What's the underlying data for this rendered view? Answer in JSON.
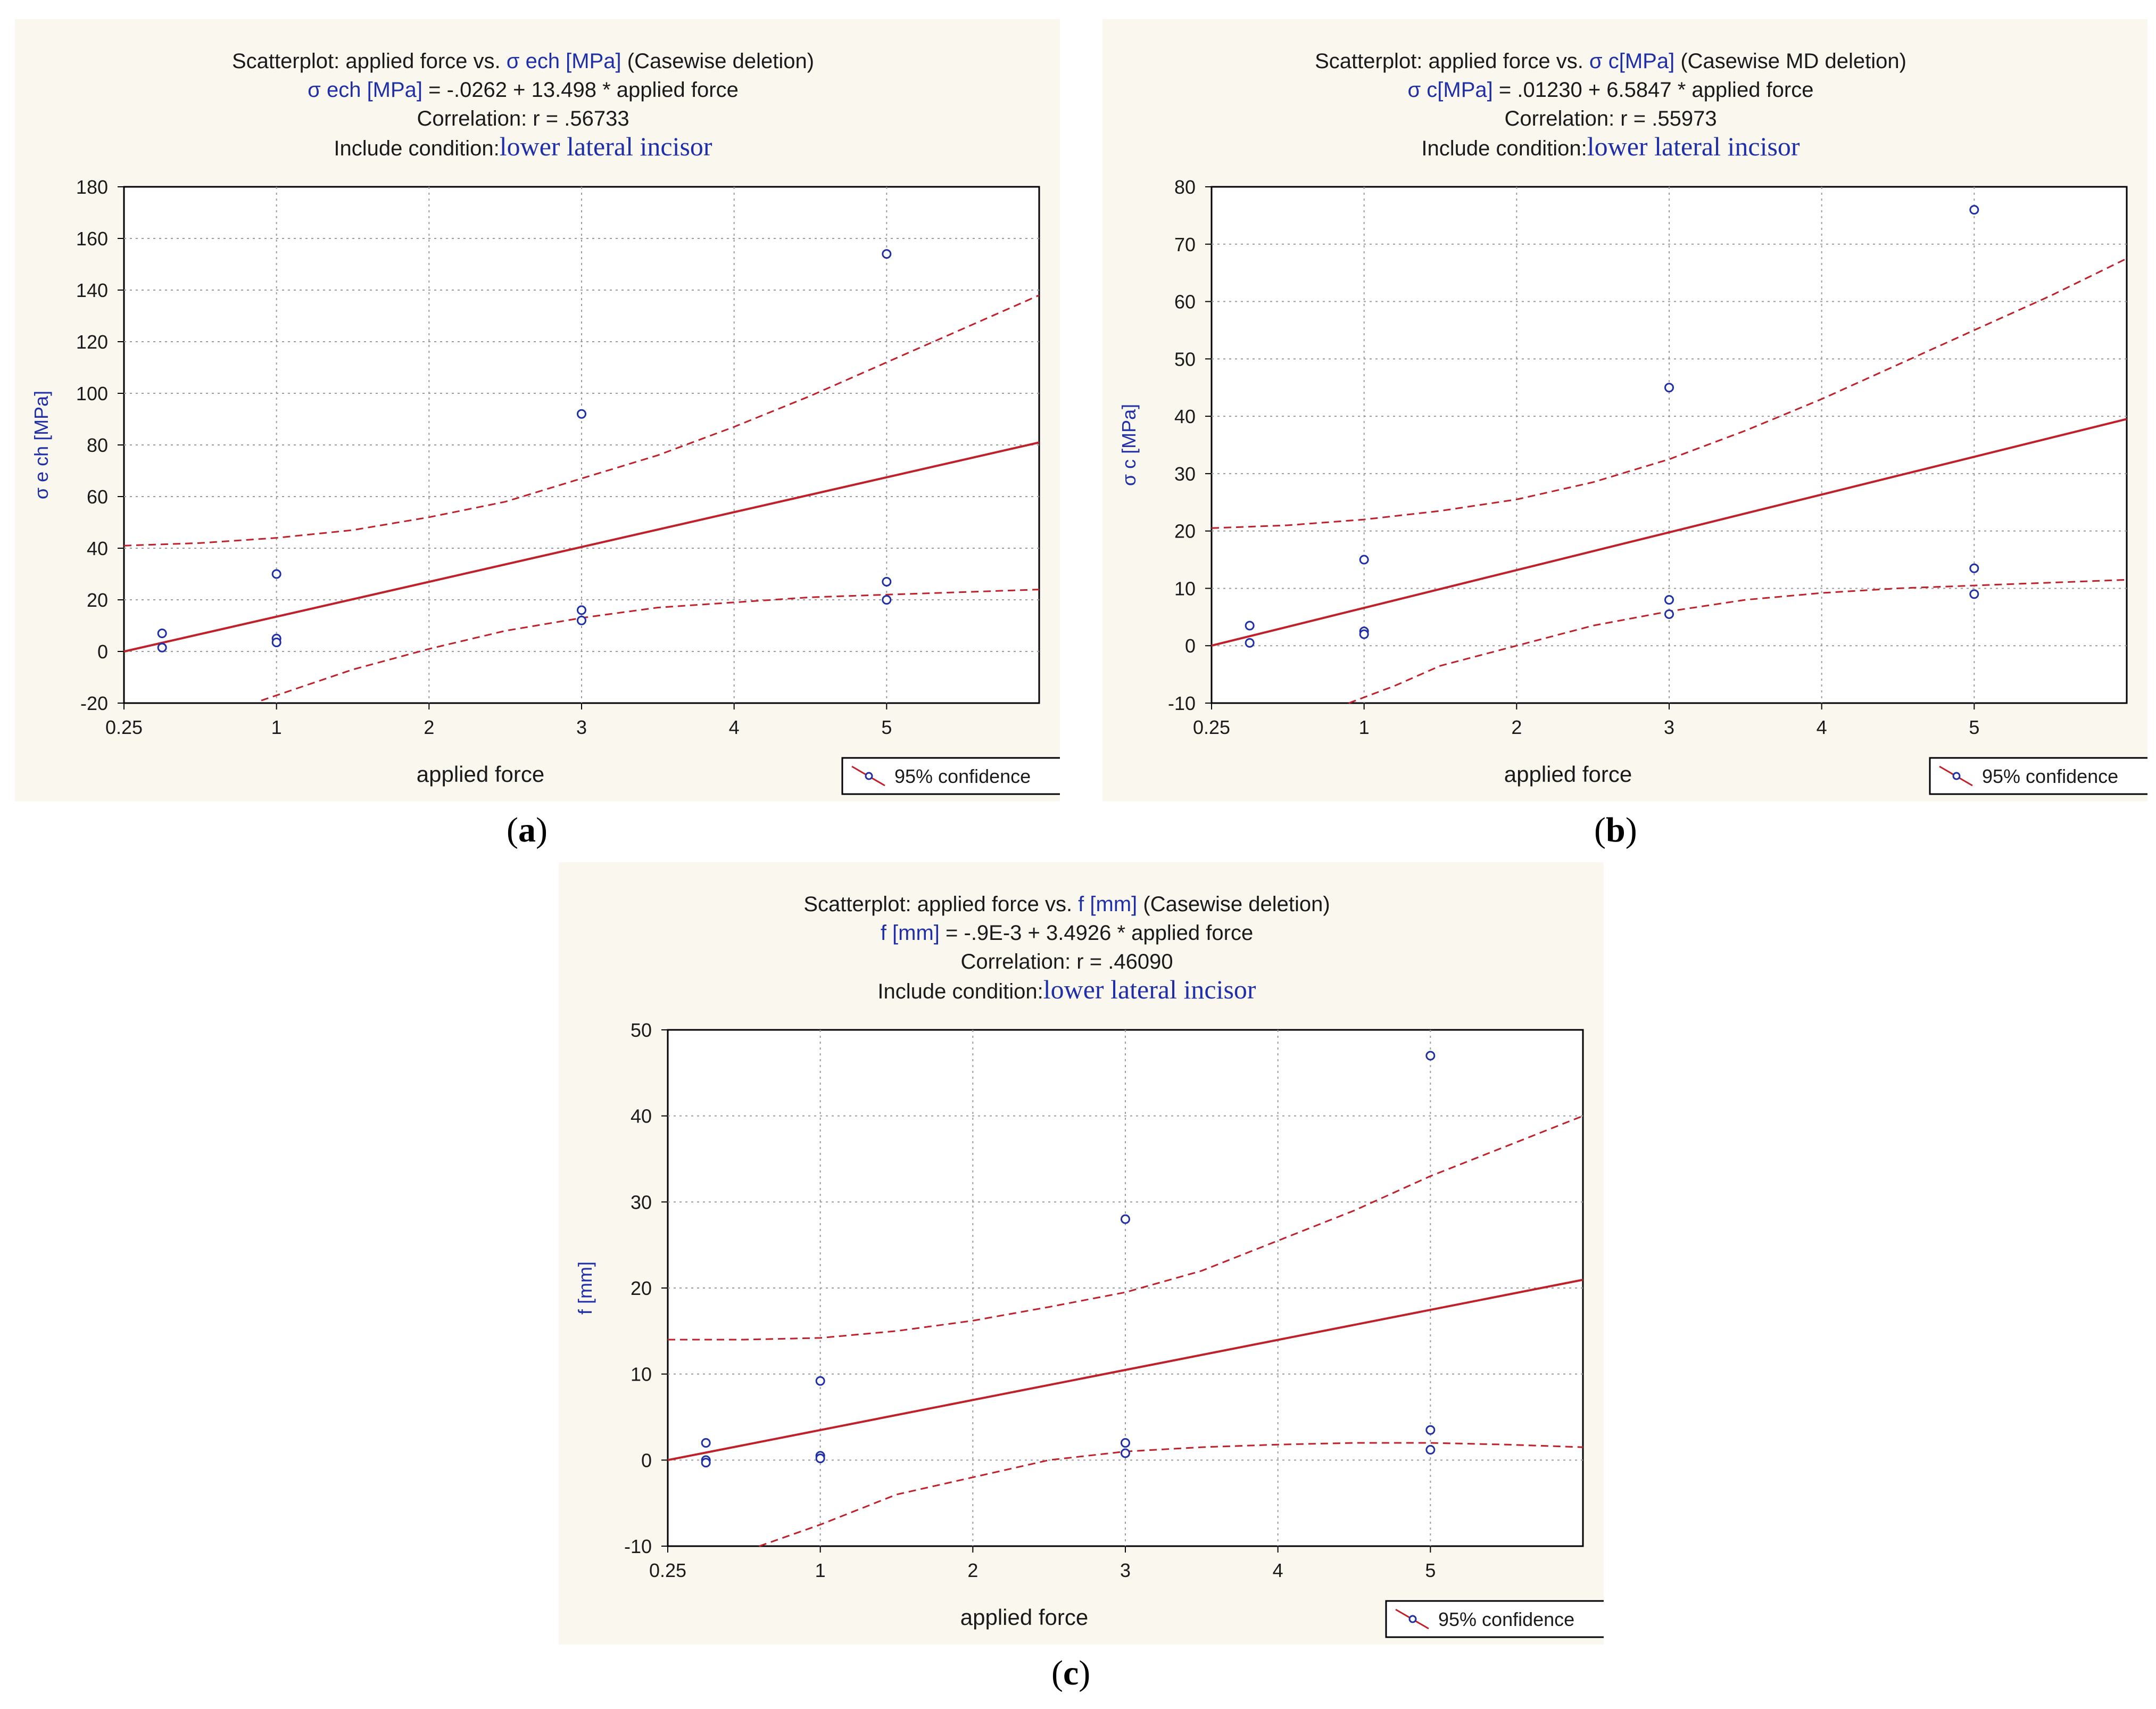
{
  "chart_data": [
    {
      "type": "scatter",
      "panel_label": "a",
      "title": "Scatterplot: applied force vs.",
      "title_var": "σ ech [MPa]",
      "title_suffix": "(Casewise deletion)",
      "equation_var": "σ ech [MPa]",
      "equation_rest": "= -.0262 + 13.498  * applied force",
      "correlation": "Correlation: r =  .56733",
      "condition_label": "Include condition:",
      "condition_value": "lower lateral incisor",
      "xlabel": "applied force",
      "ylabel": "σ e ch [MPa]",
      "xlim": [
        0,
        6
      ],
      "ylim": [
        -20,
        180
      ],
      "x_ticks": [
        {
          "v": 0,
          "t": "0.25"
        },
        {
          "v": 1,
          "t": "1"
        },
        {
          "v": 2,
          "t": "2"
        },
        {
          "v": 3,
          "t": "3"
        },
        {
          "v": 4,
          "t": "4"
        },
        {
          "v": 5,
          "t": "5"
        }
      ],
      "y_ticks": [
        -20,
        0,
        20,
        40,
        60,
        80,
        100,
        120,
        140,
        160,
        180
      ],
      "points": [
        [
          0.25,
          7
        ],
        [
          0.25,
          1.5
        ],
        [
          1,
          30
        ],
        [
          1,
          5
        ],
        [
          1,
          3.5
        ],
        [
          3,
          92
        ],
        [
          3,
          16
        ],
        [
          3,
          12
        ],
        [
          5,
          154
        ],
        [
          5,
          27
        ],
        [
          5,
          20
        ]
      ],
      "fit": {
        "intercept": -0.0262,
        "slope": 13.498
      },
      "ci_upper": [
        [
          0,
          41
        ],
        [
          0.5,
          42
        ],
        [
          1,
          44
        ],
        [
          1.5,
          47
        ],
        [
          2,
          52
        ],
        [
          2.5,
          58
        ],
        [
          3,
          67
        ],
        [
          3.5,
          76
        ],
        [
          4,
          87
        ],
        [
          4.5,
          99
        ],
        [
          5,
          112
        ],
        [
          5.5,
          125
        ],
        [
          6,
          138
        ]
      ],
      "ci_lower": [
        [
          0.9,
          -19
        ],
        [
          1.2,
          -13
        ],
        [
          1.5,
          -7
        ],
        [
          2,
          1
        ],
        [
          2.5,
          8
        ],
        [
          3,
          13
        ],
        [
          3.5,
          17
        ],
        [
          4,
          19
        ],
        [
          4.5,
          21
        ],
        [
          5,
          22
        ],
        [
          5.5,
          23
        ],
        [
          6,
          24
        ]
      ],
      "legend": "95% confidence"
    },
    {
      "type": "scatter",
      "panel_label": "b",
      "title": "Scatterplot: applied force vs.",
      "title_var": "σ c[MPa]",
      "title_suffix": "(Casewise MD deletion)",
      "equation_var": "σ c[MPa]",
      "equation_rest": "= .01230 + 6.5847 * applied force",
      "correlation": "Correlation: r = .55973",
      "condition_label": "Include condition:",
      "condition_value": "lower lateral incisor",
      "xlabel": "applied force",
      "ylabel": "σ c [MPa]",
      "xlim": [
        0,
        6
      ],
      "ylim": [
        -10,
        80
      ],
      "x_ticks": [
        {
          "v": 0,
          "t": "0.25"
        },
        {
          "v": 1,
          "t": "1"
        },
        {
          "v": 2,
          "t": "2"
        },
        {
          "v": 3,
          "t": "3"
        },
        {
          "v": 4,
          "t": "4"
        },
        {
          "v": 5,
          "t": "5"
        }
      ],
      "y_ticks": [
        -10,
        0,
        10,
        20,
        30,
        40,
        50,
        60,
        70,
        80
      ],
      "points": [
        [
          0.25,
          3.5
        ],
        [
          0.25,
          0.5
        ],
        [
          1,
          15
        ],
        [
          1,
          2.5
        ],
        [
          1,
          2
        ],
        [
          3,
          45
        ],
        [
          3,
          8
        ],
        [
          3,
          5.5
        ],
        [
          5,
          76
        ],
        [
          5,
          13.5
        ],
        [
          5,
          9
        ]
      ],
      "fit": {
        "intercept": 0.0123,
        "slope": 6.5847
      },
      "ci_upper": [
        [
          0,
          20.5
        ],
        [
          0.5,
          21
        ],
        [
          1,
          22
        ],
        [
          1.5,
          23.5
        ],
        [
          2,
          25.5
        ],
        [
          2.5,
          28.5
        ],
        [
          3,
          32.5
        ],
        [
          3.5,
          37.5
        ],
        [
          4,
          43
        ],
        [
          4.5,
          49
        ],
        [
          5,
          55
        ],
        [
          5.5,
          61
        ],
        [
          6,
          67.5
        ]
      ],
      "ci_lower": [
        [
          0.9,
          -10
        ],
        [
          1.2,
          -7
        ],
        [
          1.5,
          -3.5
        ],
        [
          2,
          0
        ],
        [
          2.5,
          3.5
        ],
        [
          3,
          6
        ],
        [
          3.5,
          8
        ],
        [
          4,
          9.2
        ],
        [
          4.5,
          10
        ],
        [
          5,
          10.5
        ],
        [
          5.5,
          11
        ],
        [
          6,
          11.5
        ]
      ],
      "legend": "95% confidence"
    },
    {
      "type": "scatter",
      "panel_label": "c",
      "title": "Scatterplot: applied force vs.",
      "title_var": "f [mm]",
      "title_suffix": "(Casewise deletion)",
      "equation_var": "f [mm]",
      "equation_rest": "= -.9E-3 + 3.4926 * applied force",
      "correlation": "Correlation: r = .46090",
      "condition_label": "Include condition:",
      "condition_value": "lower lateral incisor",
      "xlabel": "applied force",
      "ylabel": "f [mm]",
      "xlim": [
        0,
        6
      ],
      "ylim": [
        -10,
        50
      ],
      "x_ticks": [
        {
          "v": 0,
          "t": "0.25"
        },
        {
          "v": 1,
          "t": "1"
        },
        {
          "v": 2,
          "t": "2"
        },
        {
          "v": 3,
          "t": "3"
        },
        {
          "v": 4,
          "t": "4"
        },
        {
          "v": 5,
          "t": "5"
        }
      ],
      "y_ticks": [
        -10,
        0,
        10,
        20,
        30,
        40,
        50
      ],
      "points": [
        [
          0.25,
          2
        ],
        [
          0.25,
          0
        ],
        [
          0.25,
          -0.3
        ],
        [
          1,
          9.2
        ],
        [
          1,
          0.5
        ],
        [
          1,
          0.2
        ],
        [
          3,
          28
        ],
        [
          3,
          2
        ],
        [
          3,
          0.8
        ],
        [
          5,
          47
        ],
        [
          5,
          3.5
        ],
        [
          5,
          1.2
        ]
      ],
      "fit": {
        "intercept": -0.0009,
        "slope": 3.4926
      },
      "ci_upper": [
        [
          0,
          14
        ],
        [
          0.5,
          14
        ],
        [
          1,
          14.2
        ],
        [
          1.5,
          15
        ],
        [
          2,
          16.2
        ],
        [
          2.5,
          17.8
        ],
        [
          3,
          19.5
        ],
        [
          3.5,
          22
        ],
        [
          4,
          25.5
        ],
        [
          4.5,
          29
        ],
        [
          5,
          33
        ],
        [
          5.5,
          36.5
        ],
        [
          6,
          40
        ]
      ],
      "ci_lower": [
        [
          0.6,
          -10
        ],
        [
          1,
          -7.5
        ],
        [
          1.5,
          -4
        ],
        [
          2,
          -2
        ],
        [
          2.5,
          0
        ],
        [
          3,
          1
        ],
        [
          3.5,
          1.5
        ],
        [
          4,
          1.8
        ],
        [
          4.5,
          2
        ],
        [
          5,
          2
        ],
        [
          5.5,
          1.8
        ],
        [
          6,
          1.5
        ]
      ],
      "legend": "95% confidence"
    }
  ]
}
